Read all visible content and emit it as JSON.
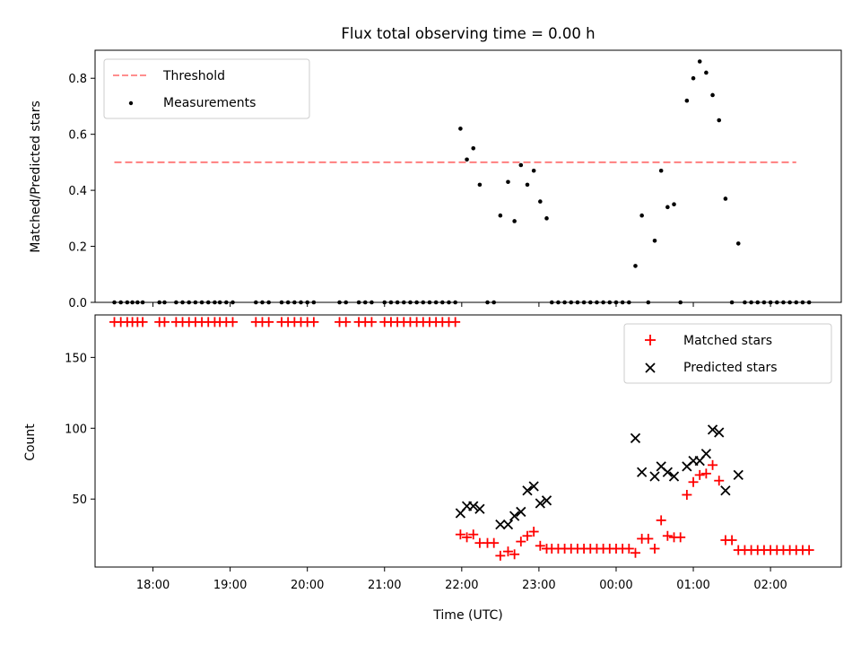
{
  "chart_data": [
    {
      "type": "scatter",
      "title": "Flux total observing time = 0.00 h",
      "xlabel": "",
      "ylabel": "Matched/Predicted stars",
      "ylim": [
        0,
        0.9
      ],
      "yticks": [
        0.0,
        0.2,
        0.4,
        0.6,
        0.8
      ],
      "ytick_labels": [
        "0.0",
        "0.2",
        "0.4",
        "0.6",
        "0.8"
      ],
      "xlim": [
        "17:15",
        "02:55"
      ],
      "grid": false,
      "legend_position": "top-left",
      "colors": {
        "threshold": "#ff7f7f",
        "measurements": "#000000"
      },
      "threshold": {
        "name": "Threshold",
        "value": 0.5,
        "x_range": [
          "17:30",
          "02:20"
        ]
      },
      "series": [
        {
          "name": "Measurements",
          "points": [
            [
              "17:30",
              0
            ],
            [
              "17:35",
              0
            ],
            [
              "17:40",
              0
            ],
            [
              "17:44",
              0
            ],
            [
              "17:48",
              0
            ],
            [
              "17:52",
              0
            ],
            [
              "18:05",
              0
            ],
            [
              "18:09",
              0
            ],
            [
              "18:18",
              0
            ],
            [
              "18:23",
              0
            ],
            [
              "18:28",
              0
            ],
            [
              "18:33",
              0
            ],
            [
              "18:38",
              0
            ],
            [
              "18:43",
              0
            ],
            [
              "18:48",
              0
            ],
            [
              "18:52",
              0
            ],
            [
              "18:57",
              0
            ],
            [
              "19:02",
              0
            ],
            [
              "19:20",
              0
            ],
            [
              "19:25",
              0
            ],
            [
              "19:30",
              0
            ],
            [
              "19:40",
              0
            ],
            [
              "19:45",
              0
            ],
            [
              "19:50",
              0
            ],
            [
              "19:55",
              0
            ],
            [
              "20:00",
              0
            ],
            [
              "20:05",
              0
            ],
            [
              "20:25",
              0
            ],
            [
              "20:30",
              0
            ],
            [
              "20:40",
              0
            ],
            [
              "20:45",
              0
            ],
            [
              "20:50",
              0
            ],
            [
              "21:00",
              0
            ],
            [
              "21:05",
              0
            ],
            [
              "21:10",
              0
            ],
            [
              "21:15",
              0
            ],
            [
              "21:20",
              0
            ],
            [
              "21:25",
              0
            ],
            [
              "21:30",
              0
            ],
            [
              "21:35",
              0
            ],
            [
              "21:40",
              0
            ],
            [
              "21:45",
              0
            ],
            [
              "21:50",
              0
            ],
            [
              "21:55",
              0
            ],
            [
              "21:59",
              0.62
            ],
            [
              "22:04",
              0.51
            ],
            [
              "22:09",
              0.55
            ],
            [
              "22:14",
              0.42
            ],
            [
              "22:20",
              0
            ],
            [
              "22:25",
              0
            ],
            [
              "22:30",
              0.31
            ],
            [
              "22:36",
              0.43
            ],
            [
              "22:41",
              0.29
            ],
            [
              "22:46",
              0.49
            ],
            [
              "22:51",
              0.42
            ],
            [
              "22:56",
              0.47
            ],
            [
              "23:01",
              0.36
            ],
            [
              "23:06",
              0.3
            ],
            [
              "23:10",
              0
            ],
            [
              "23:15",
              0
            ],
            [
              "23:20",
              0
            ],
            [
              "23:25",
              0
            ],
            [
              "23:30",
              0
            ],
            [
              "23:35",
              0
            ],
            [
              "23:40",
              0
            ],
            [
              "23:45",
              0
            ],
            [
              "23:50",
              0
            ],
            [
              "23:55",
              0
            ],
            [
              "00:00",
              0
            ],
            [
              "00:05",
              0
            ],
            [
              "00:10",
              0
            ],
            [
              "00:15",
              0.13
            ],
            [
              "00:20",
              0.31
            ],
            [
              "00:25",
              0
            ],
            [
              "00:30",
              0.22
            ],
            [
              "00:35",
              0.47
            ],
            [
              "00:40",
              0.34
            ],
            [
              "00:45",
              0.35
            ],
            [
              "00:50",
              0
            ],
            [
              "00:55",
              0.72
            ],
            [
              "01:00",
              0.8
            ],
            [
              "01:05",
              0.86
            ],
            [
              "01:10",
              0.82
            ],
            [
              "01:15",
              0.74
            ],
            [
              "01:20",
              0.65
            ],
            [
              "01:25",
              0.37
            ],
            [
              "01:30",
              0
            ],
            [
              "01:35",
              0.21
            ],
            [
              "01:40",
              0
            ],
            [
              "01:45",
              0
            ],
            [
              "01:50",
              0
            ],
            [
              "01:55",
              0
            ],
            [
              "02:00",
              0
            ],
            [
              "02:05",
              0
            ],
            [
              "02:10",
              0
            ],
            [
              "02:15",
              0
            ],
            [
              "02:20",
              0
            ],
            [
              "02:25",
              0
            ],
            [
              "02:30",
              0
            ]
          ]
        }
      ]
    },
    {
      "type": "scatter",
      "title": "",
      "xlabel": "Time (UTC)",
      "ylabel": "Count",
      "ylim": [
        2,
        180
      ],
      "yticks": [
        50,
        100,
        150
      ],
      "ytick_labels": [
        "50",
        "100",
        "150"
      ],
      "xlim": [
        "17:15",
        "02:55"
      ],
      "xticks": [
        "18:00",
        "19:00",
        "20:00",
        "21:00",
        "22:00",
        "23:00",
        "00:00",
        "01:00",
        "02:00"
      ],
      "grid": false,
      "legend_position": "top-right",
      "colors": {
        "matched": "#ff0000",
        "predicted": "#000000"
      },
      "series": [
        {
          "name": "Matched stars",
          "marker": "+",
          "points": [
            [
              "17:30",
              175
            ],
            [
              "17:35",
              175
            ],
            [
              "17:40",
              175
            ],
            [
              "17:44",
              175
            ],
            [
              "17:48",
              175
            ],
            [
              "17:52",
              175
            ],
            [
              "18:05",
              175
            ],
            [
              "18:09",
              175
            ],
            [
              "18:18",
              175
            ],
            [
              "18:23",
              175
            ],
            [
              "18:28",
              175
            ],
            [
              "18:33",
              175
            ],
            [
              "18:38",
              175
            ],
            [
              "18:43",
              175
            ],
            [
              "18:48",
              175
            ],
            [
              "18:52",
              175
            ],
            [
              "18:57",
              175
            ],
            [
              "19:02",
              175
            ],
            [
              "19:20",
              175
            ],
            [
              "19:25",
              175
            ],
            [
              "19:30",
              175
            ],
            [
              "19:40",
              175
            ],
            [
              "19:45",
              175
            ],
            [
              "19:50",
              175
            ],
            [
              "19:55",
              175
            ],
            [
              "20:00",
              175
            ],
            [
              "20:05",
              175
            ],
            [
              "20:25",
              175
            ],
            [
              "20:30",
              175
            ],
            [
              "20:40",
              175
            ],
            [
              "20:45",
              175
            ],
            [
              "20:50",
              175
            ],
            [
              "21:00",
              175
            ],
            [
              "21:05",
              175
            ],
            [
              "21:10",
              175
            ],
            [
              "21:15",
              175
            ],
            [
              "21:20",
              175
            ],
            [
              "21:25",
              175
            ],
            [
              "21:30",
              175
            ],
            [
              "21:35",
              175
            ],
            [
              "21:40",
              175
            ],
            [
              "21:45",
              175
            ],
            [
              "21:50",
              175
            ],
            [
              "21:55",
              175
            ],
            [
              "21:59",
              25
            ],
            [
              "22:04",
              23
            ],
            [
              "22:09",
              25
            ],
            [
              "22:14",
              19
            ],
            [
              "22:20",
              19
            ],
            [
              "22:25",
              19
            ],
            [
              "22:30",
              10
            ],
            [
              "22:36",
              13
            ],
            [
              "22:41",
              11
            ],
            [
              "22:46",
              20
            ],
            [
              "22:51",
              24
            ],
            [
              "22:56",
              27
            ],
            [
              "23:01",
              17
            ],
            [
              "23:06",
              15
            ],
            [
              "23:10",
              15
            ],
            [
              "23:15",
              15
            ],
            [
              "23:20",
              15
            ],
            [
              "23:25",
              15
            ],
            [
              "23:30",
              15
            ],
            [
              "23:35",
              15
            ],
            [
              "23:40",
              15
            ],
            [
              "23:45",
              15
            ],
            [
              "23:50",
              15
            ],
            [
              "23:55",
              15
            ],
            [
              "00:00",
              15
            ],
            [
              "00:05",
              15
            ],
            [
              "00:10",
              15
            ],
            [
              "00:15",
              12
            ],
            [
              "00:20",
              22
            ],
            [
              "00:25",
              22
            ],
            [
              "00:30",
              15
            ],
            [
              "00:35",
              35
            ],
            [
              "00:40",
              24
            ],
            [
              "00:45",
              23
            ],
            [
              "00:50",
              23
            ],
            [
              "00:55",
              53
            ],
            [
              "01:00",
              62
            ],
            [
              "01:05",
              67
            ],
            [
              "01:10",
              68
            ],
            [
              "01:15",
              74
            ],
            [
              "01:20",
              63
            ],
            [
              "01:25",
              21
            ],
            [
              "01:30",
              21
            ],
            [
              "01:35",
              14
            ],
            [
              "01:40",
              14
            ],
            [
              "01:45",
              14
            ],
            [
              "01:50",
              14
            ],
            [
              "01:55",
              14
            ],
            [
              "02:00",
              14
            ],
            [
              "02:05",
              14
            ],
            [
              "02:10",
              14
            ],
            [
              "02:15",
              14
            ],
            [
              "02:20",
              14
            ],
            [
              "02:25",
              14
            ],
            [
              "02:30",
              14
            ]
          ]
        },
        {
          "name": "Predicted stars",
          "marker": "x",
          "points": [
            [
              "21:59",
              40
            ],
            [
              "22:04",
              45
            ],
            [
              "22:09",
              45
            ],
            [
              "22:14",
              43
            ],
            [
              "22:30",
              32
            ],
            [
              "22:36",
              32
            ],
            [
              "22:41",
              38
            ],
            [
              "22:46",
              41
            ],
            [
              "22:51",
              56
            ],
            [
              "22:56",
              59
            ],
            [
              "23:01",
              47
            ],
            [
              "23:06",
              49
            ],
            [
              "00:15",
              93
            ],
            [
              "00:20",
              69
            ],
            [
              "00:30",
              66
            ],
            [
              "00:35",
              73
            ],
            [
              "00:40",
              69
            ],
            [
              "00:45",
              66
            ],
            [
              "00:55",
              73
            ],
            [
              "01:00",
              77
            ],
            [
              "01:05",
              77
            ],
            [
              "01:10",
              82
            ],
            [
              "01:15",
              99
            ],
            [
              "01:20",
              97
            ],
            [
              "01:25",
              56
            ],
            [
              "01:35",
              67
            ]
          ]
        }
      ]
    }
  ]
}
